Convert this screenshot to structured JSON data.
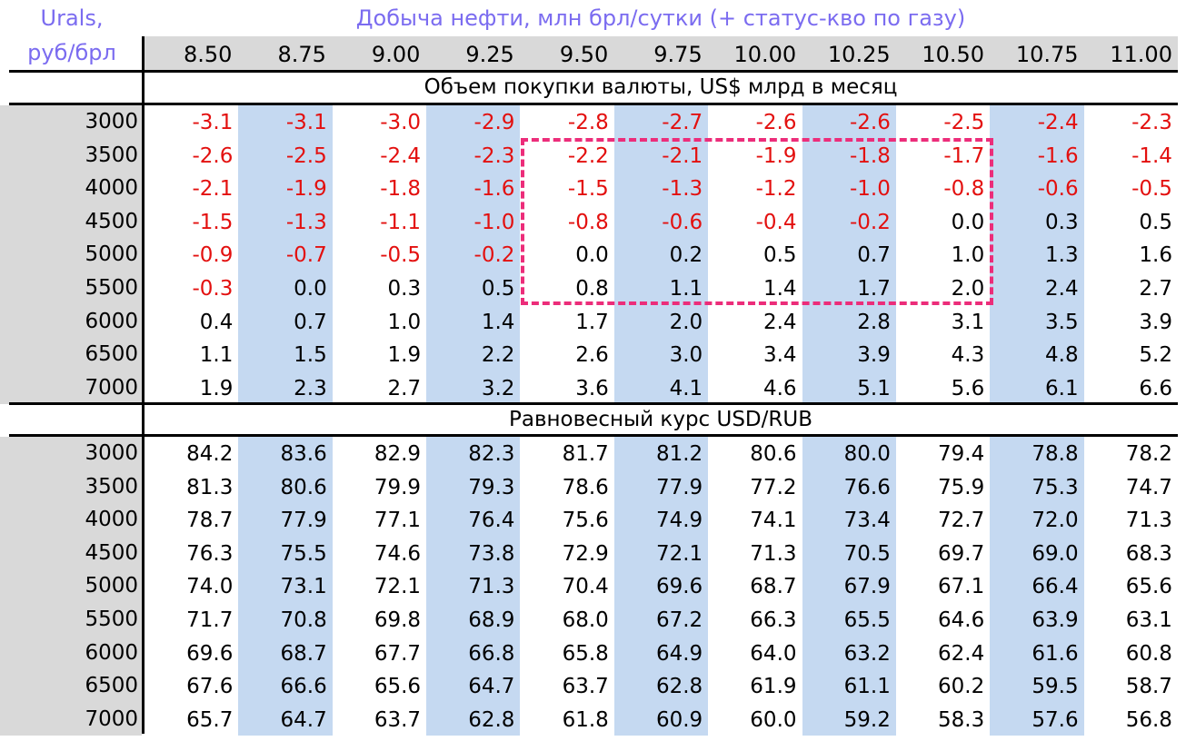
{
  "row_axis_label": [
    "Urals,",
    "руб/брл"
  ],
  "column_axis_label": "Добыча нефти, млн брл/сутки (+ статус-кво по газу)",
  "colors": {
    "title": "#7b6cf0",
    "negative": "#e3100f",
    "highlight_column": "#c5d9f1",
    "label_bg": "#d9d9d9",
    "dashed_box": "#ec2d7a"
  },
  "chart_data": {
    "type": "table",
    "columns": [
      "8.50",
      "8.75",
      "9.00",
      "9.25",
      "9.50",
      "9.75",
      "10.00",
      "10.25",
      "10.50",
      "10.75",
      "11.00"
    ],
    "rows": [
      "3000",
      "3500",
      "4000",
      "4500",
      "5000",
      "5500",
      "6000",
      "6500",
      "7000"
    ],
    "highlighted_region": {
      "rows": [
        "3500",
        "5500"
      ],
      "columns": [
        "9.50",
        "10.50"
      ]
    },
    "sections": [
      {
        "title": "Объем покупки валюты, US$ млрд в месяц",
        "values": [
          [
            "-3.1",
            "-3.1",
            "-3.0",
            "-2.9",
            "-2.8",
            "-2.7",
            "-2.6",
            "-2.6",
            "-2.5",
            "-2.4",
            "-2.3"
          ],
          [
            "-2.6",
            "-2.5",
            "-2.4",
            "-2.3",
            "-2.2",
            "-2.1",
            "-1.9",
            "-1.8",
            "-1.7",
            "-1.6",
            "-1.4"
          ],
          [
            "-2.1",
            "-1.9",
            "-1.8",
            "-1.6",
            "-1.5",
            "-1.3",
            "-1.2",
            "-1.0",
            "-0.8",
            "-0.6",
            "-0.5"
          ],
          [
            "-1.5",
            "-1.3",
            "-1.1",
            "-1.0",
            "-0.8",
            "-0.6",
            "-0.4",
            "-0.2",
            "0.0",
            "0.3",
            "0.5"
          ],
          [
            "-0.9",
            "-0.7",
            "-0.5",
            "-0.2",
            "0.0",
            "0.2",
            "0.5",
            "0.7",
            "1.0",
            "1.3",
            "1.6"
          ],
          [
            "-0.3",
            "0.0",
            "0.3",
            "0.5",
            "0.8",
            "1.1",
            "1.4",
            "1.7",
            "2.0",
            "2.4",
            "2.7"
          ],
          [
            "0.4",
            "0.7",
            "1.0",
            "1.4",
            "1.7",
            "2.0",
            "2.4",
            "2.8",
            "3.1",
            "3.5",
            "3.9"
          ],
          [
            "1.1",
            "1.5",
            "1.9",
            "2.2",
            "2.6",
            "3.0",
            "3.4",
            "3.9",
            "4.3",
            "4.8",
            "5.2"
          ],
          [
            "1.9",
            "2.3",
            "2.7",
            "3.2",
            "3.6",
            "4.1",
            "4.6",
            "5.1",
            "5.6",
            "6.1",
            "6.6"
          ]
        ]
      },
      {
        "title": "Равновесный курс USD/RUB",
        "values": [
          [
            "84.2",
            "83.6",
            "82.9",
            "82.3",
            "81.7",
            "81.2",
            "80.6",
            "80.0",
            "79.4",
            "78.8",
            "78.2"
          ],
          [
            "81.3",
            "80.6",
            "79.9",
            "79.3",
            "78.6",
            "77.9",
            "77.2",
            "76.6",
            "75.9",
            "75.3",
            "74.7"
          ],
          [
            "78.7",
            "77.9",
            "77.1",
            "76.4",
            "75.6",
            "74.9",
            "74.1",
            "73.4",
            "72.7",
            "72.0",
            "71.3"
          ],
          [
            "76.3",
            "75.5",
            "74.6",
            "73.8",
            "72.9",
            "72.1",
            "71.3",
            "70.5",
            "69.7",
            "69.0",
            "68.3"
          ],
          [
            "74.0",
            "73.1",
            "72.1",
            "71.3",
            "70.4",
            "69.6",
            "68.7",
            "67.9",
            "67.1",
            "66.4",
            "65.6"
          ],
          [
            "71.7",
            "70.8",
            "69.8",
            "68.9",
            "68.0",
            "67.2",
            "66.3",
            "65.5",
            "64.6",
            "63.9",
            "63.1"
          ],
          [
            "69.6",
            "68.7",
            "67.7",
            "66.8",
            "65.8",
            "64.9",
            "64.0",
            "63.2",
            "62.4",
            "61.6",
            "60.8"
          ],
          [
            "67.6",
            "66.6",
            "65.6",
            "64.7",
            "63.7",
            "62.8",
            "61.9",
            "61.1",
            "60.2",
            "59.5",
            "58.7"
          ],
          [
            "65.7",
            "64.7",
            "63.7",
            "62.8",
            "61.8",
            "60.9",
            "60.0",
            "59.2",
            "58.3",
            "57.6",
            "56.8"
          ]
        ]
      }
    ]
  }
}
